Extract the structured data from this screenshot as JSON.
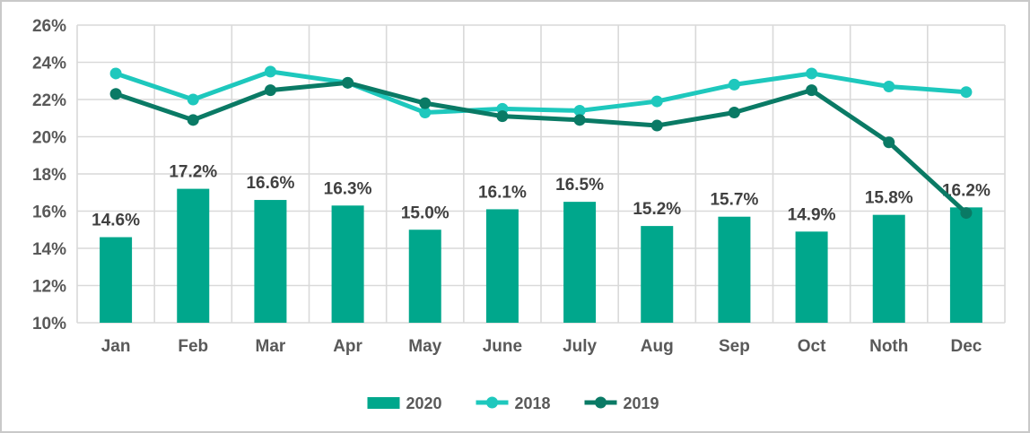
{
  "chart_data": {
    "type": "bar",
    "subtype": "combo-bar-line",
    "title": "",
    "categories": [
      "Jan",
      "Feb",
      "Mar",
      "Apr",
      "May",
      "June",
      "July",
      "Aug",
      "Sep",
      "Oct",
      "Noth",
      "Dec"
    ],
    "series": [
      {
        "name": "2020",
        "type": "bar",
        "color": "#00A78C",
        "values": [
          14.6,
          17.2,
          16.6,
          16.3,
          15.0,
          16.1,
          16.5,
          15.2,
          15.7,
          14.9,
          15.8,
          16.2
        ],
        "data_labels": [
          "14.6%",
          "17.2%",
          "16.6%",
          "16.3%",
          "15.0%",
          "16.1%",
          "16.5%",
          "15.2%",
          "15.7%",
          "14.9%",
          "15.8%",
          "16.2%"
        ]
      },
      {
        "name": "2018",
        "type": "line",
        "color": "#1EC8BD",
        "values": [
          23.4,
          22.0,
          23.5,
          22.9,
          21.3,
          21.5,
          21.4,
          21.9,
          22.8,
          23.4,
          22.7,
          22.4
        ]
      },
      {
        "name": "2019",
        "type": "line",
        "color": "#0A7A65",
        "values": [
          22.3,
          20.9,
          22.5,
          22.9,
          21.8,
          21.1,
          20.9,
          20.6,
          21.3,
          22.5,
          19.7,
          15.9
        ]
      }
    ],
    "xlabel": "",
    "ylabel": "",
    "ylim": [
      10,
      26
    ],
    "ytick_step": 2,
    "ytick_labels": [
      "10%",
      "12%",
      "14%",
      "16%",
      "18%",
      "20%",
      "22%",
      "24%",
      "26%"
    ],
    "grid": true,
    "legend_position": "bottom",
    "legend_labels": [
      "2020",
      "2018",
      "2019"
    ]
  },
  "styles": {
    "grid_color": "#D9D9D9",
    "axis_text_color": "#595959",
    "data_label_color": "#404040",
    "legend_text_color": "#595959",
    "frame_border_color": "#C9C9C9",
    "background": "#FFFFFF"
  }
}
